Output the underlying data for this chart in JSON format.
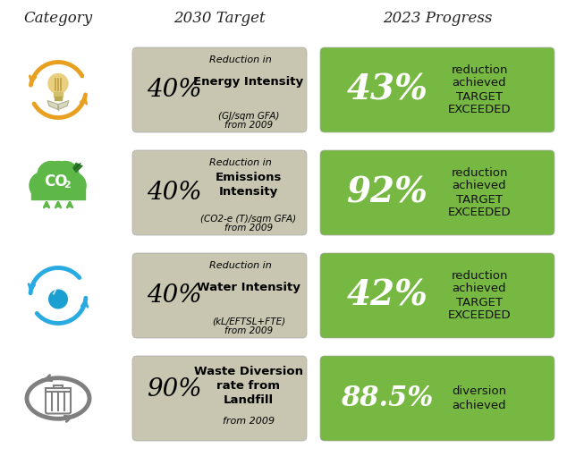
{
  "title_category": "Category",
  "title_target": "2030 Target",
  "title_progress": "2023 Progress",
  "background_color": "#ffffff",
  "target_box_color": "#c8c5b0",
  "progress_box_color": "#77b843",
  "rows": [
    {
      "target_pct": "40%",
      "target_line1": "Reduction in",
      "target_bold": "Energy Intensity",
      "target_line3": "(GJ/sqm GFA)",
      "target_line4": "from 2009",
      "progress_pct": "43%",
      "progress_line1": "reduction",
      "progress_line2": "achieved",
      "progress_line3": "TARGET",
      "progress_line4": "EXCEEDED",
      "is_waste": false
    },
    {
      "target_pct": "40%",
      "target_line1": "Reduction in",
      "target_bold": "Emissions\nIntensity",
      "target_line3": "(CO2-e (T)/sqm GFA)",
      "target_line4": "from 2009",
      "progress_pct": "92%",
      "progress_line1": "reduction",
      "progress_line2": "achieved",
      "progress_line3": "TARGET",
      "progress_line4": "EXCEEDED",
      "is_waste": false
    },
    {
      "target_pct": "40%",
      "target_line1": "Reduction in",
      "target_bold": "Water Intensity",
      "target_line3": "(kL/EFTSL+FTE)",
      "target_line4": "from 2009",
      "progress_pct": "42%",
      "progress_line1": "reduction",
      "progress_line2": "achieved",
      "progress_line3": "TARGET",
      "progress_line4": "EXCEEDED",
      "is_waste": false
    },
    {
      "target_pct": "90%",
      "target_line1": "",
      "target_bold": "Waste Diversion\nrate from\nLandfill",
      "target_line3": "from 2009",
      "target_line4": "",
      "progress_pct": "88.5%",
      "progress_line1": "diversion",
      "progress_line2": "achieved",
      "progress_line3": "",
      "progress_line4": "",
      "is_waste": true
    }
  ],
  "icon_colors": {
    "energy": "#e8a020",
    "co2": "#5db848",
    "water": "#29abe2",
    "waste": "#7f7f7f"
  }
}
